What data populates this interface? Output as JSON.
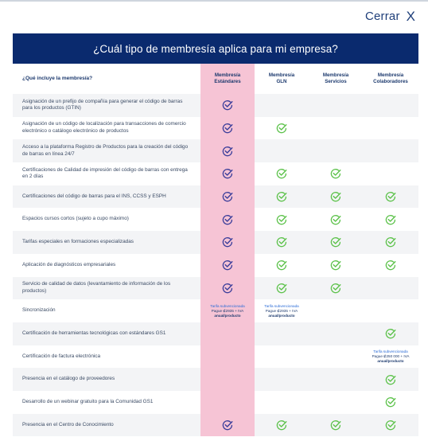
{
  "close": {
    "label": "Cerrar",
    "icon": "close-icon",
    "glyph": "X"
  },
  "header": {
    "title": "¿Cuál tipo de membresía aplica para mi empresa?"
  },
  "colors": {
    "navy": "#0a2a6e",
    "highlight": "#f6c4d5",
    "check_dark": "#3a3d9a",
    "check_green": "#5cc24a"
  },
  "table": {
    "question": "¿Qué incluye la membresía?",
    "columns": [
      {
        "l1": "Membresía",
        "l2": "Estándares"
      },
      {
        "l1": "Membresía",
        "l2": "GLN"
      },
      {
        "l1": "Membresía",
        "l2": "Servicios"
      },
      {
        "l1": "Membresía",
        "l2": "Colaboradores"
      }
    ],
    "rows": [
      {
        "label": "Asignación de un prefijo de compañía para generar el código de barras para los productos (GTIN)",
        "cells": [
          "check",
          "",
          "",
          ""
        ]
      },
      {
        "label": "Asignación de un código de localización para transacciones de comercio electrónico o catálogo electrónico de productos",
        "cells": [
          "check",
          "check",
          "",
          ""
        ]
      },
      {
        "label": "Acceso a la plataforma Registro de Productos para la creación del código de barras en línea 24/7",
        "cells": [
          "check",
          "",
          "",
          ""
        ]
      },
      {
        "label": "Certificaciones de Calidad de impresión del código de barras con entrega en 2 días",
        "cells": [
          "check",
          "check",
          "check",
          ""
        ]
      },
      {
        "label": "Certificaciones del código de barras para el INS, CCSS y ESPH",
        "cells": [
          "check",
          "check",
          "check",
          "check"
        ]
      },
      {
        "label": "Espacios cursos cortos (sujeto a cupo máximo)",
        "cells": [
          "check",
          "check",
          "check",
          "check"
        ]
      },
      {
        "label": "Tarifas especiales en formaciones especializadas",
        "cells": [
          "check",
          "check",
          "check",
          "check"
        ]
      },
      {
        "label": "Aplicación de diagnósticos empresariales",
        "cells": [
          "check",
          "check",
          "check",
          "check"
        ]
      },
      {
        "label": "Servicio de calidad de datos (levantamiento de información de los productos)",
        "cells": [
          "check",
          "check",
          "check",
          ""
        ]
      },
      {
        "label": "Sincronización",
        "cells": [
          "p1",
          "p1",
          "",
          ""
        ]
      },
      {
        "label": "Certificación de herramientas tecnológicas con estándares GS1",
        "cells": [
          "",
          "",
          "",
          "check"
        ]
      },
      {
        "label": "Certificación de factura electrónica",
        "cells": [
          "",
          "",
          "",
          "p2"
        ]
      },
      {
        "label": "Presencia en el catálogo de proveedores",
        "cells": [
          "",
          "",
          "",
          "check"
        ]
      },
      {
        "label": "Desarrollo de un webinar gratuito para la Comunidad GS1",
        "cells": [
          "",
          "",
          "",
          "check"
        ]
      },
      {
        "label": "Presencia en el Centro de Conocimiento",
        "cells": [
          "check",
          "check",
          "check",
          "check"
        ]
      }
    ],
    "prices": {
      "p1": {
        "line1": "Tarifa subvencionada",
        "line2": "Pague ₡2935 + IVA",
        "line3": "anual/producto"
      },
      "p2": {
        "line1": "Tarifa subvencionada",
        "line2": "Pague ₡250 000 + IVA",
        "line3": "anual/producto"
      }
    }
  }
}
